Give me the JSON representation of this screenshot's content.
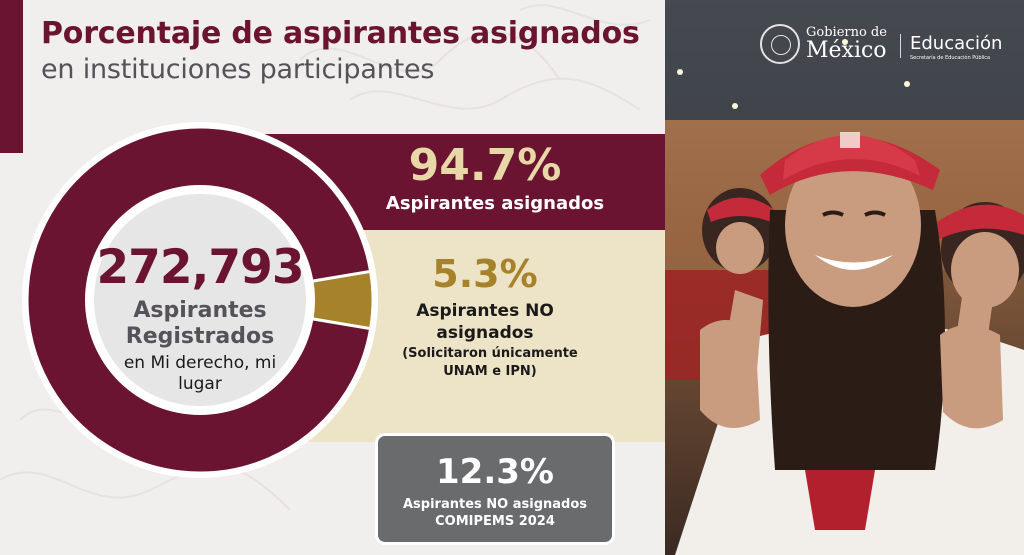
{
  "header": {
    "title": "Porcentaje de aspirantes asignados",
    "subtitle": "en instituciones participantes"
  },
  "center": {
    "total": "272,793",
    "label": "Aspirantes Registrados",
    "sublabel": "en Mi derecho, mi lugar"
  },
  "assigned": {
    "percent": "94.7%",
    "label": "Aspirantes asignados"
  },
  "not_assigned": {
    "percent": "5.3%",
    "label": "Aspirantes NO asignados",
    "note": "(Solicitaron únicamente UNAM e IPN)"
  },
  "comipems": {
    "percent": "12.3%",
    "label": "Aspirantes NO asignados COMIPEMS 2024"
  },
  "logos": {
    "gob_line1": "Gobierno de",
    "gob_line2": "México",
    "education": "Educación",
    "education_sub": "Secretaría de Educación Pública"
  },
  "colors": {
    "assigned": "#6b1431",
    "not_assigned": "#a6822a",
    "beige": "#ede3c6",
    "gray": "#6a6b6d"
  },
  "chart_data": {
    "type": "pie",
    "categories": [
      "Aspirantes asignados",
      "Aspirantes NO asignados"
    ],
    "values": [
      94.7,
      5.3
    ],
    "total": 272793
  }
}
